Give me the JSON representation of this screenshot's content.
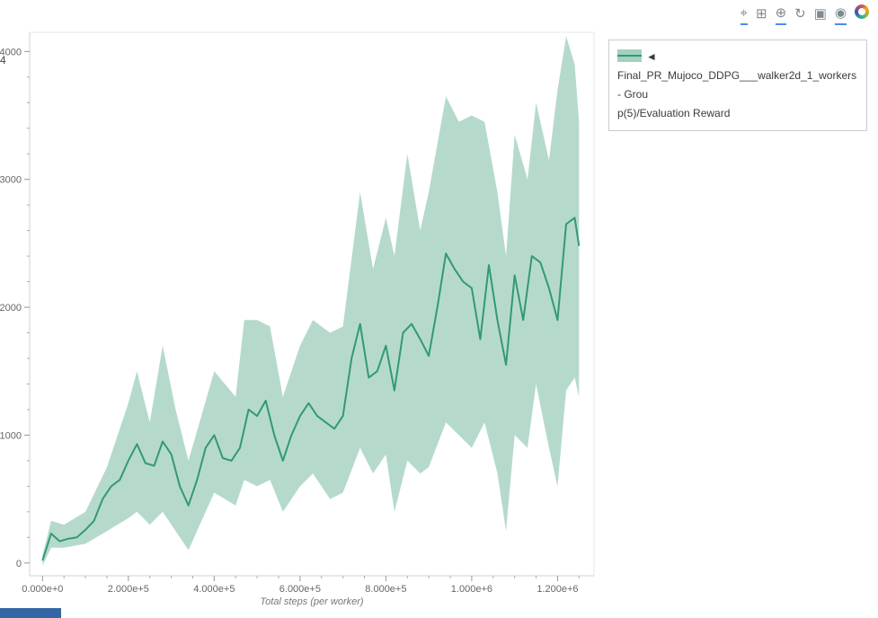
{
  "toolbar": {
    "icons": [
      {
        "name": "pan-tool-icon",
        "glyph": "⌖",
        "active": true,
        "logo": false
      },
      {
        "name": "box-zoom-tool-icon",
        "glyph": "⊞",
        "active": false,
        "logo": false
      },
      {
        "name": "wheel-zoom-tool-icon",
        "glyph": "⊕",
        "active": true,
        "logo": false
      },
      {
        "name": "reset-tool-icon",
        "glyph": "↻",
        "active": false,
        "logo": false
      },
      {
        "name": "save-tool-icon",
        "glyph": "▣",
        "active": false,
        "logo": false
      },
      {
        "name": "hover-tool-icon",
        "glyph": "◉",
        "active": true,
        "logo": false
      },
      {
        "name": "bokeh-logo",
        "glyph": "",
        "active": false,
        "logo": true
      }
    ]
  },
  "legend": {
    "lines": [
      "◄ Final_PR_Mujoco_DDPG___walker2d_1_workers - Grou",
      "p(5)/Evaluation Reward"
    ]
  },
  "artifacts": {
    "clipped_label": "4"
  },
  "chart_data": {
    "type": "line",
    "title": "",
    "xlabel": "Total steps (per worker)",
    "ylabel": "",
    "legend_label": "Final_PR_Mujoco_DDPG___walker2d_1_workers - Group(5)/Evaluation Reward",
    "x_range": [
      -30000,
      1285000
    ],
    "y_range": [
      -100,
      4150
    ],
    "grid": false,
    "legend_position": "top-right-outside",
    "line_color": "#339973",
    "band_color": "#a3d1bf",
    "x_ticks": [
      {
        "v": 0,
        "label": "0.000e+0"
      },
      {
        "v": 200000,
        "label": "2.000e+5"
      },
      {
        "v": 400000,
        "label": "4.000e+5"
      },
      {
        "v": 600000,
        "label": "6.000e+5"
      },
      {
        "v": 800000,
        "label": "8.000e+5"
      },
      {
        "v": 1000000,
        "label": "1.000e+6"
      },
      {
        "v": 1200000,
        "label": "1.200e+6"
      }
    ],
    "y_ticks": [
      {
        "v": 0,
        "label": "0"
      },
      {
        "v": 1000,
        "label": "1000"
      },
      {
        "v": 2000,
        "label": "2000"
      },
      {
        "v": 3000,
        "label": "3000"
      },
      {
        "v": 4000,
        "label": "4000"
      }
    ],
    "series": [
      {
        "name": "evaluation-reward-mean",
        "x": [
          0,
          20000,
          40000,
          60000,
          80000,
          100000,
          120000,
          140000,
          160000,
          180000,
          200000,
          220000,
          240000,
          260000,
          280000,
          300000,
          320000,
          340000,
          360000,
          380000,
          400000,
          420000,
          440000,
          460000,
          480000,
          500000,
          520000,
          540000,
          560000,
          580000,
          600000,
          620000,
          640000,
          660000,
          680000,
          700000,
          720000,
          740000,
          760000,
          780000,
          800000,
          820000,
          840000,
          860000,
          880000,
          900000,
          920000,
          940000,
          960000,
          980000,
          1000000,
          1020000,
          1040000,
          1060000,
          1080000,
          1100000,
          1120000,
          1140000,
          1160000,
          1180000,
          1200000,
          1220000,
          1240000,
          1250000
        ],
        "y": [
          20,
          230,
          170,
          190,
          200,
          260,
          330,
          500,
          600,
          650,
          800,
          930,
          780,
          760,
          950,
          850,
          600,
          450,
          650,
          900,
          1000,
          820,
          800,
          900,
          1200,
          1150,
          1270,
          1000,
          800,
          1000,
          1150,
          1250,
          1150,
          1100,
          1050,
          1150,
          1600,
          1870,
          1450,
          1500,
          1700,
          1350,
          1800,
          1870,
          1750,
          1620,
          2000,
          2420,
          2300,
          2200,
          2150,
          1750,
          2330,
          1900,
          1550,
          2250,
          1900,
          2400,
          2350,
          2150,
          1900,
          2650,
          2700,
          2480
        ]
      }
    ],
    "band": {
      "name": "evaluation-reward-std-band",
      "x": [
        0,
        20000,
        50000,
        100000,
        150000,
        200000,
        220000,
        250000,
        280000,
        310000,
        340000,
        400000,
        450000,
        470000,
        500000,
        530000,
        560000,
        600000,
        630000,
        670000,
        700000,
        740000,
        770000,
        800000,
        820000,
        850000,
        880000,
        900000,
        940000,
        970000,
        1000000,
        1030000,
        1060000,
        1080000,
        1100000,
        1130000,
        1150000,
        1180000,
        1200000,
        1220000,
        1240000,
        1250000
      ],
      "upper": [
        60,
        330,
        300,
        400,
        750,
        1250,
        1500,
        1100,
        1700,
        1200,
        800,
        1500,
        1300,
        1900,
        1900,
        1850,
        1300,
        1700,
        1900,
        1800,
        1850,
        2900,
        2300,
        2700,
        2400,
        3200,
        2600,
        2900,
        3650,
        3450,
        3500,
        3450,
        2900,
        2400,
        3350,
        3000,
        3600,
        3150,
        3700,
        4120,
        3900,
        3450
      ],
      "lower": [
        -20,
        120,
        120,
        150,
        250,
        350,
        400,
        300,
        400,
        250,
        100,
        550,
        450,
        650,
        600,
        650,
        400,
        600,
        700,
        500,
        550,
        900,
        700,
        850,
        400,
        800,
        700,
        750,
        1100,
        1000,
        900,
        1100,
        700,
        250,
        1000,
        900,
        1400,
        900,
        600,
        1350,
        1450,
        1300
      ]
    }
  }
}
